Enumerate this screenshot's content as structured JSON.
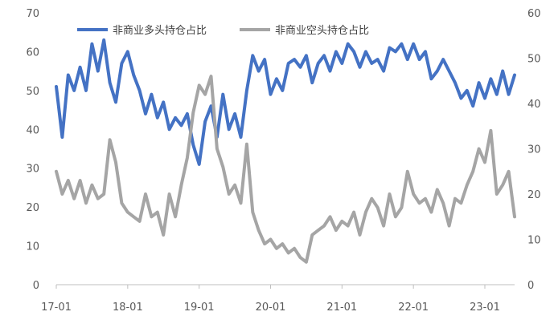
{
  "chart_data": {
    "type": "line",
    "title": "",
    "legend_position": "top",
    "grid": false,
    "x_ticks": [
      "17-01",
      "18-01",
      "19-01",
      "20-01",
      "21-01",
      "22-01",
      "23-01"
    ],
    "x_range": [
      "2017-01",
      "2023-06"
    ],
    "y_left": {
      "range": [
        0,
        70
      ],
      "ticks": [
        0,
        10,
        20,
        30,
        40,
        50,
        60,
        70
      ]
    },
    "y_right": {
      "range": [
        0,
        60
      ],
      "ticks": [
        0,
        10,
        20,
        30,
        40,
        50,
        60
      ]
    },
    "series": [
      {
        "name": "非商业多头持仓占比",
        "axis": "left",
        "color": "#4472C4",
        "points": [
          [
            "2017-01",
            51
          ],
          [
            "2017-02",
            38
          ],
          [
            "2017-03",
            54
          ],
          [
            "2017-04",
            50
          ],
          [
            "2017-05",
            56
          ],
          [
            "2017-06",
            50
          ],
          [
            "2017-07",
            62
          ],
          [
            "2017-08",
            55
          ],
          [
            "2017-09",
            63
          ],
          [
            "2017-10",
            52
          ],
          [
            "2017-11",
            47
          ],
          [
            "2017-12",
            57
          ],
          [
            "2018-01",
            60
          ],
          [
            "2018-02",
            54
          ],
          [
            "2018-03",
            50
          ],
          [
            "2018-04",
            44
          ],
          [
            "2018-05",
            49
          ],
          [
            "2018-06",
            43
          ],
          [
            "2018-07",
            47
          ],
          [
            "2018-08",
            40
          ],
          [
            "2018-09",
            43
          ],
          [
            "2018-10",
            41
          ],
          [
            "2018-11",
            44
          ],
          [
            "2018-12",
            36
          ],
          [
            "2019-01",
            31
          ],
          [
            "2019-02",
            42
          ],
          [
            "2019-03",
            46
          ],
          [
            "2019-04",
            38
          ],
          [
            "2019-05",
            49
          ],
          [
            "2019-06",
            40
          ],
          [
            "2019-07",
            44
          ],
          [
            "2019-08",
            38
          ],
          [
            "2019-09",
            50
          ],
          [
            "2019-10",
            59
          ],
          [
            "2019-11",
            55
          ],
          [
            "2019-12",
            58
          ],
          [
            "2020-01",
            49
          ],
          [
            "2020-02",
            53
          ],
          [
            "2020-03",
            50
          ],
          [
            "2020-04",
            57
          ],
          [
            "2020-05",
            58
          ],
          [
            "2020-06",
            56
          ],
          [
            "2020-07",
            59
          ],
          [
            "2020-08",
            52
          ],
          [
            "2020-09",
            57
          ],
          [
            "2020-10",
            59
          ],
          [
            "2020-11",
            55
          ],
          [
            "2020-12",
            60
          ],
          [
            "2021-01",
            57
          ],
          [
            "2021-02",
            62
          ],
          [
            "2021-03",
            60
          ],
          [
            "2021-04",
            56
          ],
          [
            "2021-05",
            60
          ],
          [
            "2021-06",
            57
          ],
          [
            "2021-07",
            58
          ],
          [
            "2021-08",
            55
          ],
          [
            "2021-09",
            61
          ],
          [
            "2021-10",
            60
          ],
          [
            "2021-11",
            62
          ],
          [
            "2021-12",
            58
          ],
          [
            "2022-01",
            62
          ],
          [
            "2022-02",
            58
          ],
          [
            "2022-03",
            60
          ],
          [
            "2022-04",
            53
          ],
          [
            "2022-05",
            55
          ],
          [
            "2022-06",
            58
          ],
          [
            "2022-07",
            55
          ],
          [
            "2022-08",
            52
          ],
          [
            "2022-09",
            48
          ],
          [
            "2022-10",
            50
          ],
          [
            "2022-11",
            46
          ],
          [
            "2022-12",
            52
          ],
          [
            "2023-01",
            48
          ],
          [
            "2023-02",
            53
          ],
          [
            "2023-03",
            49
          ],
          [
            "2023-04",
            55
          ],
          [
            "2023-05",
            49
          ],
          [
            "2023-06",
            54
          ]
        ]
      },
      {
        "name": "非商业空头持仓占比",
        "axis": "right",
        "color": "#A5A5A5",
        "points": [
          [
            "2017-01",
            25
          ],
          [
            "2017-02",
            20
          ],
          [
            "2017-03",
            23
          ],
          [
            "2017-04",
            19
          ],
          [
            "2017-05",
            23
          ],
          [
            "2017-06",
            18
          ],
          [
            "2017-07",
            22
          ],
          [
            "2017-08",
            19
          ],
          [
            "2017-09",
            20
          ],
          [
            "2017-10",
            32
          ],
          [
            "2017-11",
            27
          ],
          [
            "2017-12",
            18
          ],
          [
            "2018-01",
            16
          ],
          [
            "2018-02",
            15
          ],
          [
            "2018-03",
            14
          ],
          [
            "2018-04",
            20
          ],
          [
            "2018-05",
            15
          ],
          [
            "2018-06",
            16
          ],
          [
            "2018-07",
            11
          ],
          [
            "2018-08",
            20
          ],
          [
            "2018-09",
            15
          ],
          [
            "2018-10",
            22
          ],
          [
            "2018-11",
            28
          ],
          [
            "2018-12",
            38
          ],
          [
            "2019-01",
            44
          ],
          [
            "2019-02",
            42
          ],
          [
            "2019-03",
            46
          ],
          [
            "2019-04",
            30
          ],
          [
            "2019-05",
            26
          ],
          [
            "2019-06",
            20
          ],
          [
            "2019-07",
            22
          ],
          [
            "2019-08",
            18
          ],
          [
            "2019-09",
            31
          ],
          [
            "2019-10",
            16
          ],
          [
            "2019-11",
            12
          ],
          [
            "2019-12",
            9
          ],
          [
            "2020-01",
            10
          ],
          [
            "2020-02",
            8
          ],
          [
            "2020-03",
            9
          ],
          [
            "2020-04",
            7
          ],
          [
            "2020-05",
            8
          ],
          [
            "2020-06",
            6
          ],
          [
            "2020-07",
            5
          ],
          [
            "2020-08",
            11
          ],
          [
            "2020-09",
            12
          ],
          [
            "2020-10",
            13
          ],
          [
            "2020-11",
            15
          ],
          [
            "2020-12",
            12
          ],
          [
            "2021-01",
            14
          ],
          [
            "2021-02",
            13
          ],
          [
            "2021-03",
            16
          ],
          [
            "2021-04",
            11
          ],
          [
            "2021-05",
            16
          ],
          [
            "2021-06",
            19
          ],
          [
            "2021-07",
            17
          ],
          [
            "2021-08",
            13
          ],
          [
            "2021-09",
            20
          ],
          [
            "2021-10",
            15
          ],
          [
            "2021-11",
            17
          ],
          [
            "2021-12",
            25
          ],
          [
            "2022-01",
            20
          ],
          [
            "2022-02",
            18
          ],
          [
            "2022-03",
            19
          ],
          [
            "2022-04",
            16
          ],
          [
            "2022-05",
            21
          ],
          [
            "2022-06",
            18
          ],
          [
            "2022-07",
            13
          ],
          [
            "2022-08",
            19
          ],
          [
            "2022-09",
            18
          ],
          [
            "2022-10",
            22
          ],
          [
            "2022-11",
            25
          ],
          [
            "2022-12",
            30
          ],
          [
            "2023-01",
            27
          ],
          [
            "2023-02",
            34
          ],
          [
            "2023-03",
            20
          ],
          [
            "2023-04",
            22
          ],
          [
            "2023-05",
            25
          ],
          [
            "2023-06",
            15
          ]
        ]
      }
    ]
  }
}
